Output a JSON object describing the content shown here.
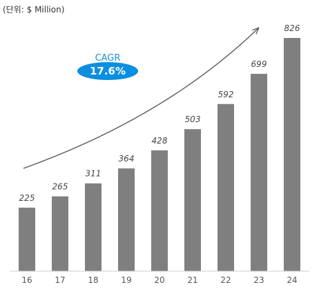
{
  "chart_data": {
    "type": "bar",
    "unit_label": "(단위: $ Million)",
    "categories": [
      "16",
      "17",
      "18",
      "19",
      "20",
      "21",
      "22",
      "23",
      "24"
    ],
    "values": [
      225,
      265,
      311,
      364,
      428,
      503,
      592,
      699,
      826
    ],
    "data_labels": [
      "225",
      "265",
      "311",
      "364",
      "428",
      "503",
      "592",
      "699",
      "826"
    ],
    "ylim": [
      0,
      900
    ],
    "grid": false,
    "bar_color": "#7f7f7f",
    "annotation": {
      "label": "CAGR",
      "value": "17.6%",
      "badge_color": "#0a8fe0",
      "arrow_color": "#555555"
    }
  }
}
